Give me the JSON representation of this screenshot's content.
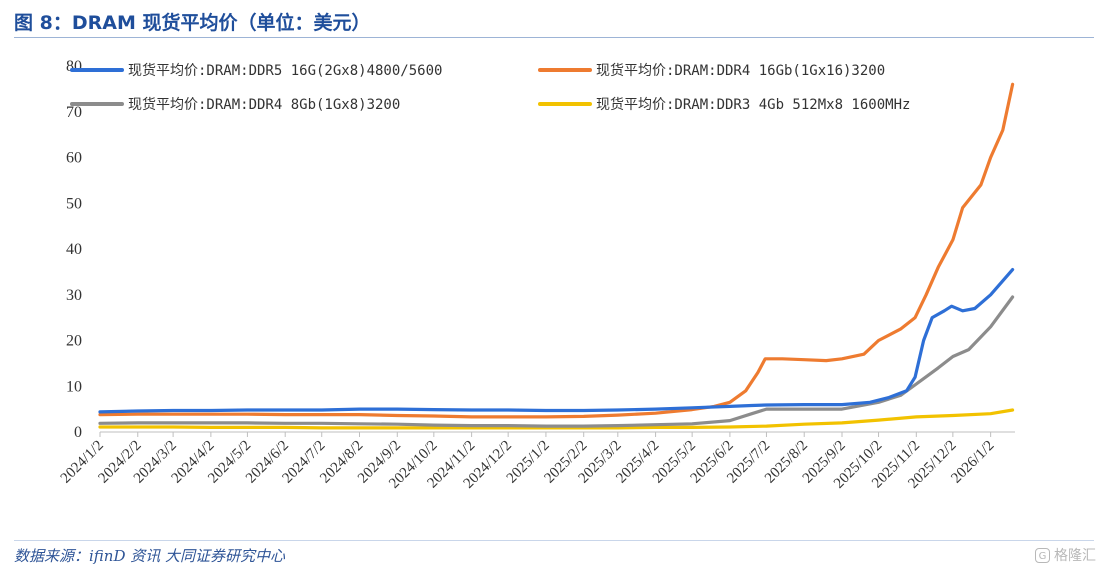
{
  "figure": {
    "title": "图 8：DRAM 现货平均价（单位：美元）",
    "source": "数据来源：ifinD 资讯 大同证券研究中心",
    "watermark": "格隆汇"
  },
  "chart_data": {
    "type": "line",
    "title": "",
    "xlabel": "",
    "ylabel": "",
    "ylim": [
      0,
      80
    ],
    "yticks": [
      0,
      10,
      20,
      30,
      40,
      50,
      60,
      70,
      80
    ],
    "xticks": [
      "2024/1/2",
      "2024/2/2",
      "2024/3/2",
      "2024/4/2",
      "2024/5/2",
      "2024/6/2",
      "2024/7/2",
      "2024/8/2",
      "2024/9/2",
      "2024/10/2",
      "2024/11/2",
      "2024/12/2",
      "2025/1/2",
      "2025/2/2",
      "2025/3/2",
      "2025/4/2",
      "2025/5/2",
      "2025/6/2",
      "2025/7/2",
      "2025/8/2",
      "2025/9/2",
      "2025/10/2",
      "2025/11/2",
      "2025/12/2",
      "2026/1/2"
    ],
    "grid": false,
    "legend_position": "top",
    "series": [
      {
        "name": "现货平均价:DRAM:DDR5 16G(2Gx8)4800/5600",
        "color": "#2e6fd6",
        "points": [
          [
            "2024/1/2",
            4.4
          ],
          [
            "2024/2/2",
            4.6
          ],
          [
            "2024/3/2",
            4.7
          ],
          [
            "2024/4/2",
            4.7
          ],
          [
            "2024/5/2",
            4.8
          ],
          [
            "2024/6/2",
            4.8
          ],
          [
            "2024/7/2",
            4.8
          ],
          [
            "2024/8/2",
            5.0
          ],
          [
            "2024/9/2",
            5.0
          ],
          [
            "2024/10/2",
            4.9
          ],
          [
            "2024/11/2",
            4.8
          ],
          [
            "2024/12/2",
            4.8
          ],
          [
            "2025/1/2",
            4.7
          ],
          [
            "2025/2/2",
            4.7
          ],
          [
            "2025/3/2",
            4.8
          ],
          [
            "2025/4/2",
            5.0
          ],
          [
            "2025/5/2",
            5.3
          ],
          [
            "2025/6/2",
            5.6
          ],
          [
            "2025/6/20",
            5.8
          ],
          [
            "2025/7/2",
            5.9
          ],
          [
            "2025/8/2",
            6.0
          ],
          [
            "2025/9/2",
            6.0
          ],
          [
            "2025/9/25",
            6.5
          ],
          [
            "2025/10/10",
            7.5
          ],
          [
            "2025/10/25",
            9.0
          ],
          [
            "2025/11/1",
            12.0
          ],
          [
            "2025/11/8",
            20.0
          ],
          [
            "2025/11/15",
            25.0
          ],
          [
            "2025/11/25",
            26.5
          ],
          [
            "2025/12/1",
            27.5
          ],
          [
            "2025/12/10",
            26.5
          ],
          [
            "2025/12/20",
            27.0
          ],
          [
            "2026/1/2",
            30.0
          ],
          [
            "2026/1/20",
            35.5
          ]
        ]
      },
      {
        "name": "现货平均价:DRAM:DDR4 16Gb(1Gx16)3200",
        "color": "#ee7b30",
        "points": [
          [
            "2024/1/2",
            3.8
          ],
          [
            "2024/2/2",
            3.9
          ],
          [
            "2024/3/2",
            3.9
          ],
          [
            "2024/4/2",
            3.9
          ],
          [
            "2024/5/2",
            3.9
          ],
          [
            "2024/6/2",
            3.8
          ],
          [
            "2024/7/2",
            3.8
          ],
          [
            "2024/8/2",
            3.8
          ],
          [
            "2024/9/2",
            3.6
          ],
          [
            "2024/10/2",
            3.5
          ],
          [
            "2024/11/2",
            3.3
          ],
          [
            "2024/12/2",
            3.3
          ],
          [
            "2025/1/2",
            3.3
          ],
          [
            "2025/2/2",
            3.4
          ],
          [
            "2025/3/2",
            3.7
          ],
          [
            "2025/4/2",
            4.1
          ],
          [
            "2025/5/2",
            4.9
          ],
          [
            "2025/5/20",
            5.6
          ],
          [
            "2025/6/2",
            6.5
          ],
          [
            "2025/6/15",
            9.0
          ],
          [
            "2025/6/25",
            13.0
          ],
          [
            "2025/7/1",
            16.0
          ],
          [
            "2025/7/15",
            16.0
          ],
          [
            "2025/8/2",
            15.8
          ],
          [
            "2025/8/20",
            15.6
          ],
          [
            "2025/9/2",
            16.0
          ],
          [
            "2025/9/20",
            17.0
          ],
          [
            "2025/10/2",
            20.0
          ],
          [
            "2025/10/20",
            22.5
          ],
          [
            "2025/11/1",
            25.0
          ],
          [
            "2025/11/10",
            30.0
          ],
          [
            "2025/11/20",
            36.0
          ],
          [
            "2025/12/2",
            42.0
          ],
          [
            "2025/12/10",
            49.0
          ],
          [
            "2025/12/25",
            54.0
          ],
          [
            "2026/1/2",
            60.0
          ],
          [
            "2026/1/12",
            66.0
          ],
          [
            "2026/1/20",
            76.0
          ]
        ]
      },
      {
        "name": "现货平均价:DRAM:DDR4 8Gb(1Gx8)3200",
        "color": "#8c8c8c",
        "points": [
          [
            "2024/1/2",
            1.9
          ],
          [
            "2024/2/2",
            2.0
          ],
          [
            "2024/3/2",
            2.0
          ],
          [
            "2024/4/2",
            2.0
          ],
          [
            "2024/5/2",
            2.0
          ],
          [
            "2024/6/2",
            1.9
          ],
          [
            "2024/7/2",
            1.9
          ],
          [
            "2024/8/2",
            1.8
          ],
          [
            "2024/9/2",
            1.7
          ],
          [
            "2024/10/2",
            1.5
          ],
          [
            "2024/11/2",
            1.4
          ],
          [
            "2024/12/2",
            1.4
          ],
          [
            "2025/1/2",
            1.3
          ],
          [
            "2025/2/2",
            1.3
          ],
          [
            "2025/3/2",
            1.4
          ],
          [
            "2025/4/2",
            1.6
          ],
          [
            "2025/5/2",
            1.8
          ],
          [
            "2025/6/2",
            2.5
          ],
          [
            "2025/6/20",
            4.0
          ],
          [
            "2025/7/2",
            5.0
          ],
          [
            "2025/8/2",
            5.0
          ],
          [
            "2025/9/2",
            5.0
          ],
          [
            "2025/10/2",
            6.5
          ],
          [
            "2025/10/20",
            8.0
          ],
          [
            "2025/11/2",
            10.5
          ],
          [
            "2025/11/20",
            14.0
          ],
          [
            "2025/12/2",
            16.5
          ],
          [
            "2025/12/15",
            18.0
          ],
          [
            "2026/1/2",
            23.0
          ],
          [
            "2026/1/20",
            29.5
          ]
        ]
      },
      {
        "name": "现货平均价:DRAM:DDR3 4Gb 512Mx8 1600MHz",
        "color": "#f2c200",
        "points": [
          [
            "2024/1/2",
            1.1
          ],
          [
            "2024/2/2",
            1.1
          ],
          [
            "2024/3/2",
            1.1
          ],
          [
            "2024/4/2",
            1.0
          ],
          [
            "2024/5/2",
            1.0
          ],
          [
            "2024/6/2",
            1.0
          ],
          [
            "2024/7/2",
            0.9
          ],
          [
            "2024/8/2",
            0.9
          ],
          [
            "2024/9/2",
            0.9
          ],
          [
            "2024/10/2",
            0.9
          ],
          [
            "2024/11/2",
            0.9
          ],
          [
            "2024/12/2",
            0.9
          ],
          [
            "2025/1/2",
            0.9
          ],
          [
            "2025/2/2",
            0.9
          ],
          [
            "2025/3/2",
            0.9
          ],
          [
            "2025/4/2",
            1.0
          ],
          [
            "2025/5/2",
            1.0
          ],
          [
            "2025/6/2",
            1.1
          ],
          [
            "2025/7/2",
            1.3
          ],
          [
            "2025/8/2",
            1.7
          ],
          [
            "2025/9/2",
            2.0
          ],
          [
            "2025/10/2",
            2.6
          ],
          [
            "2025/11/2",
            3.3
          ],
          [
            "2025/12/2",
            3.6
          ],
          [
            "2026/1/2",
            4.0
          ],
          [
            "2026/1/20",
            4.8
          ]
        ]
      }
    ]
  }
}
